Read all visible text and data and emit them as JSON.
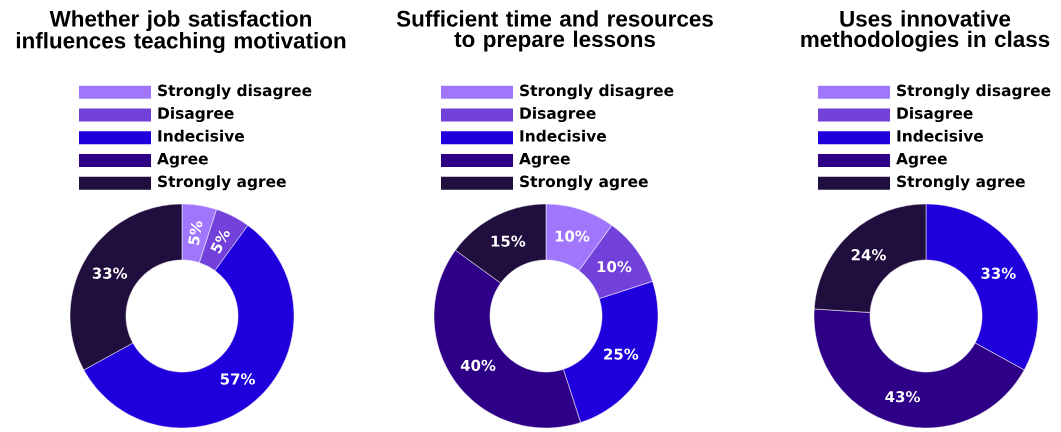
{
  "chart_data": [
    {
      "type": "donut",
      "title": "Whether job satisfaction influences teaching motivation",
      "categories": [
        "Strongly disagree",
        "Disagree",
        "Indecisive",
        "Agree",
        "Strongly agree"
      ],
      "values": [
        5,
        5,
        57,
        0,
        33
      ],
      "colors": [
        "#a077fc",
        "#7241d9",
        "#1f00dc",
        "#2e0087",
        "#200e3e"
      ],
      "value_labels": [
        "5%",
        "5%",
        "57%",
        null,
        "33%"
      ],
      "legend": "top"
    },
    {
      "type": "donut",
      "title": "Sufficient time and resources to prepare lessons",
      "categories": [
        "Strongly disagree",
        "Disagree",
        "Indecisive",
        "Agree",
        "Strongly agree"
      ],
      "values": [
        10,
        10,
        25,
        40,
        15
      ],
      "colors": [
        "#a077fc",
        "#7241d9",
        "#1f00dc",
        "#2e0087",
        "#200e3e"
      ],
      "value_labels": [
        "10%",
        "10%",
        "25%",
        "40%",
        "15%"
      ],
      "legend": "top"
    },
    {
      "type": "donut",
      "title": "Uses innovative methodologies in class",
      "categories": [
        "Strongly disagree",
        "Disagree",
        "Indecisive",
        "Agree",
        "Strongly agree"
      ],
      "values": [
        0,
        0,
        33,
        43,
        24
      ],
      "colors": [
        "#a077fc",
        "#7241d9",
        "#1f00dc",
        "#2e0087",
        "#200e3e"
      ],
      "value_labels": [
        null,
        null,
        "33%",
        "43%",
        "24%"
      ],
      "legend": "top"
    }
  ]
}
